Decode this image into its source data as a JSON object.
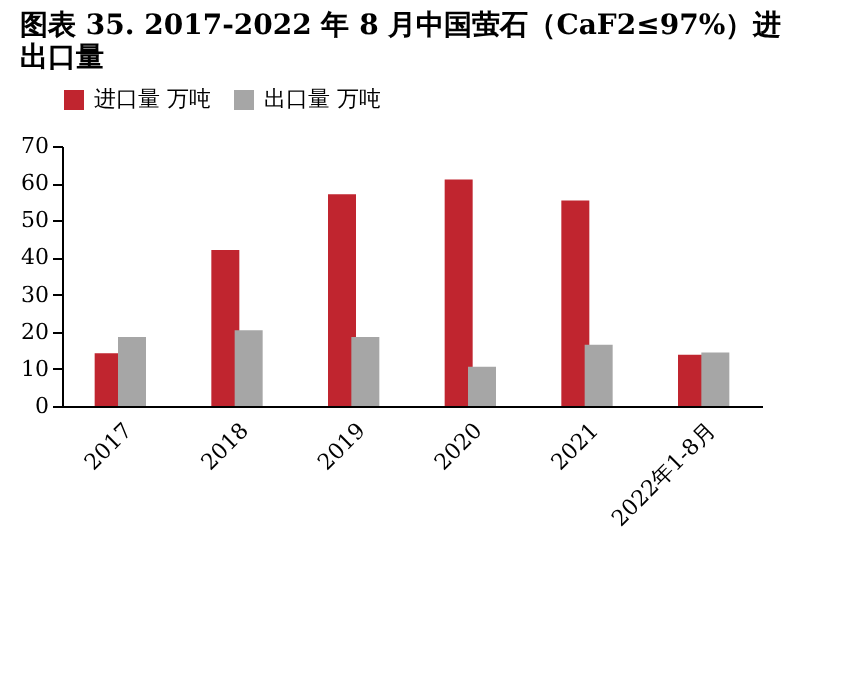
{
  "chart_data": {
    "type": "bar",
    "title": "图表 35. 2017-2022 年 8 月中国萤石（CaF2≤97%）进出口量",
    "categories": [
      "2017",
      "2018",
      "2019",
      "2020",
      "2021",
      "2022年1-8月"
    ],
    "series": [
      {
        "name": "进口量 万吨",
        "color": "#c0252f",
        "values": [
          14.2,
          42,
          57,
          61,
          55.3,
          13.8
        ]
      },
      {
        "name": "出口量 万吨",
        "color": "#a6a6a6",
        "values": [
          18.6,
          20.4,
          18.6,
          10.6,
          16.5,
          14.4
        ]
      }
    ],
    "ylim": [
      0,
      70
    ],
    "yticks": [
      0,
      10,
      20,
      30,
      40,
      50,
      60,
      70
    ],
    "grid": false,
    "legend": "top"
  }
}
